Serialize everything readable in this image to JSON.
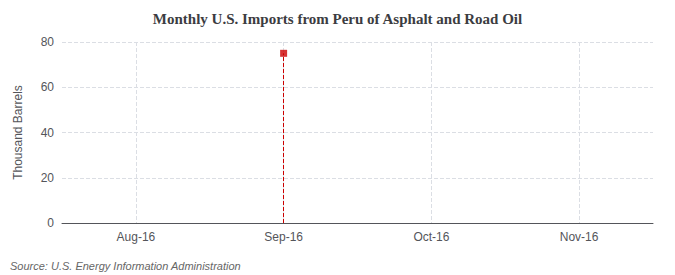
{
  "chart_data": {
    "type": "stem",
    "title": "Monthly U.S. Imports from Peru of Asphalt and Road Oil",
    "y_label": "Thousand Barrels",
    "annotations": [
      "Source: U.S. Energy Information Administration"
    ],
    "categories": [
      "Aug-16",
      "Sep-16",
      "Oct-16",
      "Nov-16"
    ],
    "values": [
      null,
      75,
      null,
      null
    ],
    "color": "#cc0000",
    "marker": "square",
    "line_style": "dashed",
    "ylim": [
      0,
      80
    ],
    "yticks": [
      0,
      20,
      40,
      60,
      80
    ],
    "grid": true
  }
}
